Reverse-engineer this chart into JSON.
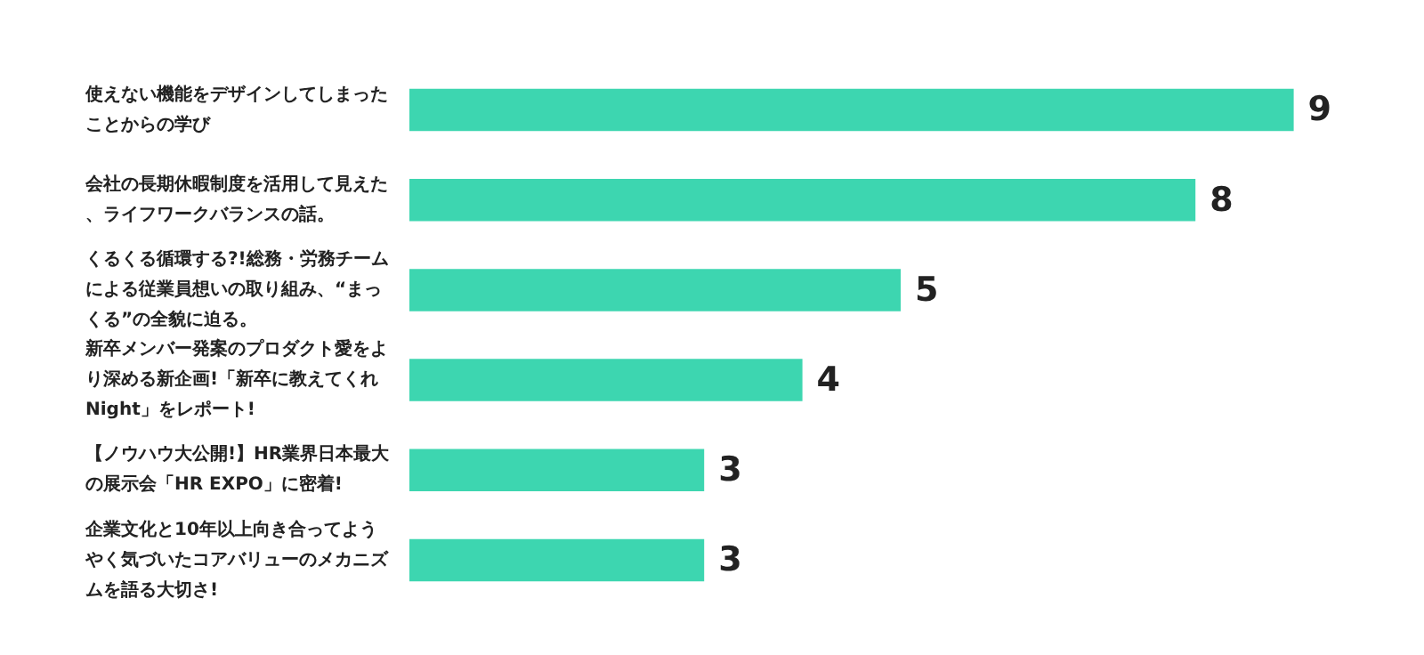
{
  "chart_data": {
    "type": "bar",
    "orientation": "horizontal",
    "categories": [
      "使えない機能をデザインしてしまったことからの学び",
      "会社の長期休暇制度を活用して見えた、ライフワークバランスの話。",
      "くるくる循環する?!総務・労務チームによる従業員想いの取り組み、“まっくる”の全貌に迫る。",
      "新卒メンバー発案のプロダクト愛をより深める新企画!「新卒に教えてくれNight」をレポート!",
      "【ノウハウ大公開!】HR業界日本最大の展示会「HR EXPO」に密着!",
      "企業文化と10年以上向き合ってようやく気づいたコアバリューのメカニズムを語る大切さ!"
    ],
    "values": [
      9,
      8,
      5,
      4,
      3,
      3
    ],
    "color": "#3dd6b0",
    "data_labels": true,
    "grid": false,
    "legend": false
  }
}
